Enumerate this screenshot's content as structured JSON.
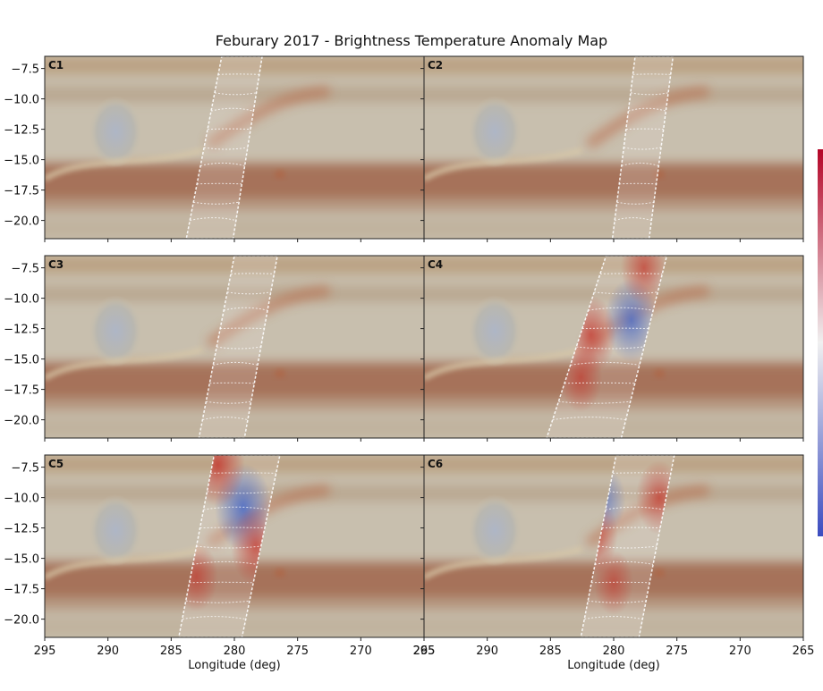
{
  "chart_data": {
    "type": "heatmap",
    "title": "Feburary 2017 - Brightness Temperature Anomaly Map",
    "xlabel": "Longitude (deg)",
    "ylabel": "",
    "xlim": [
      295,
      265
    ],
    "ylim": [
      -21.5,
      -6.5
    ],
    "x_ticks": [
      295,
      290,
      285,
      280,
      275,
      270,
      265
    ],
    "y_ticks": [
      -7.5,
      -10.0,
      -12.5,
      -15.0,
      -17.5,
      -20.0
    ],
    "colorbar": "blue-white-red diverging (cold to warm)",
    "panels": [
      {
        "label": "C1",
        "strip": [
          [
            281,
            -6.5
          ],
          [
            277.8,
            -6.5
          ],
          [
            280.1,
            -21.5
          ],
          [
            283.8,
            -21.5
          ]
        ],
        "features": []
      },
      {
        "label": "C2",
        "strip": [
          [
            278.3,
            -6.5
          ],
          [
            275.3,
            -6.5
          ],
          [
            277.2,
            -21.5
          ],
          [
            280.1,
            -21.5
          ]
        ],
        "features": []
      },
      {
        "label": "C3",
        "strip": [
          [
            280,
            -6.5
          ],
          [
            276.6,
            -6.5
          ],
          [
            279.2,
            -21.5
          ],
          [
            282.8,
            -21.5
          ]
        ],
        "features": []
      },
      {
        "label": "C4",
        "strip": [
          [
            280.6,
            -6.5
          ],
          [
            275.8,
            -6.5
          ],
          [
            279.4,
            -21.5
          ],
          [
            285.3,
            -21.5
          ]
        ],
        "features": [
          {
            "kind": "cold",
            "x": 278.6,
            "y": -11.8,
            "strength": 0.8
          },
          {
            "kind": "warm",
            "x": 281.8,
            "y": -13.0,
            "strength": 0.7
          },
          {
            "kind": "warm",
            "x": 277.6,
            "y": -7.5,
            "strength": 0.6
          },
          {
            "kind": "warm",
            "x": 282.6,
            "y": -16.5,
            "strength": 0.5
          }
        ]
      },
      {
        "label": "C5",
        "strip": [
          [
            281.6,
            -6.5
          ],
          [
            276.4,
            -6.5
          ],
          [
            279.4,
            -21.5
          ],
          [
            284.4,
            -21.5
          ]
        ],
        "features": [
          {
            "kind": "cold",
            "x": 279.3,
            "y": -10.8,
            "strength": 0.9
          },
          {
            "kind": "warm",
            "x": 281.3,
            "y": -7.3,
            "strength": 0.8
          },
          {
            "kind": "warm",
            "x": 278.3,
            "y": -14.0,
            "strength": 0.7
          },
          {
            "kind": "warm",
            "x": 283.0,
            "y": -16.5,
            "strength": 0.5
          }
        ]
      },
      {
        "label": "C6",
        "strip": [
          [
            279.8,
            -6.5
          ],
          [
            275.2,
            -6.5
          ],
          [
            278.0,
            -21.5
          ],
          [
            282.6,
            -21.5
          ]
        ],
        "features": [
          {
            "kind": "warm",
            "x": 281.8,
            "y": -13.0,
            "strength": 0.8
          },
          {
            "kind": "warm",
            "x": 276.4,
            "y": -10.0,
            "strength": 0.6
          },
          {
            "kind": "cold",
            "x": 280.6,
            "y": -10.2,
            "strength": 0.4
          },
          {
            "kind": "warm",
            "x": 280.0,
            "y": -17.0,
            "strength": 0.4
          }
        ]
      }
    ]
  }
}
